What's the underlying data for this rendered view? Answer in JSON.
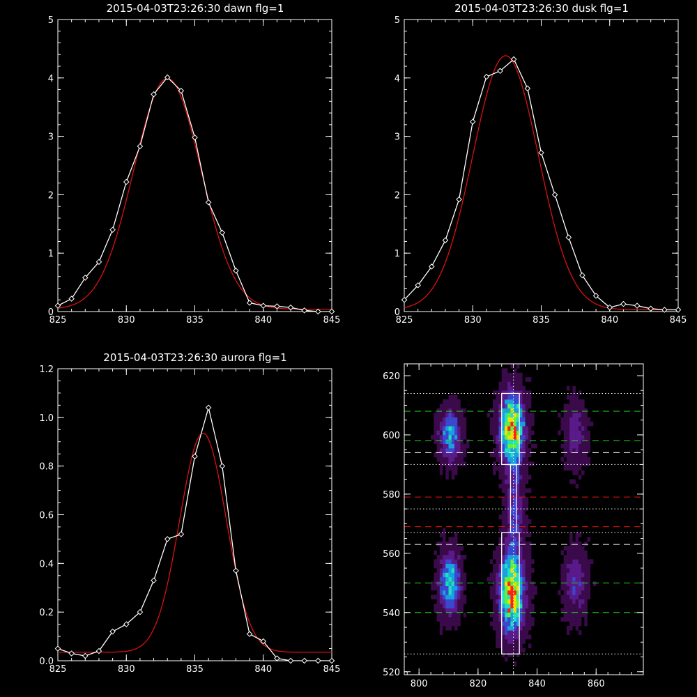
{
  "chart_data": [
    {
      "type": "line",
      "title": "2015-04-03T23:26:30 dawn flg=1",
      "xlim": [
        825,
        845
      ],
      "ylim": [
        0,
        5
      ],
      "xticks": [
        825,
        830,
        835,
        840,
        845
      ],
      "yticks": [
        0,
        1,
        2,
        3,
        4,
        5
      ],
      "series": [
        {
          "role": "measured",
          "color": "#ffffff",
          "marker": "diamond",
          "x": [
            825,
            826,
            827,
            828,
            829,
            830,
            831,
            832,
            833,
            834,
            835,
            836,
            837,
            838,
            839,
            840,
            841,
            842,
            843,
            844,
            845
          ],
          "y": [
            0.1,
            0.22,
            0.58,
            0.85,
            1.4,
            2.22,
            2.83,
            3.72,
            4.01,
            3.78,
            2.98,
            1.87,
            1.35,
            0.7,
            0.15,
            0.1,
            0.09,
            0.07,
            0.02,
            0.0,
            0.0
          ]
        },
        {
          "role": "fit",
          "color": "#dd1111",
          "gaussian": {
            "amp": 3.95,
            "center": 833.0,
            "sigma": 2.45,
            "base": 0.04
          }
        }
      ]
    },
    {
      "type": "line",
      "title": "2015-04-03T23:26:30 dusk flg=1",
      "xlim": [
        825,
        845
      ],
      "ylim": [
        0,
        5
      ],
      "xticks": [
        825,
        830,
        835,
        840,
        845
      ],
      "yticks": [
        0,
        1,
        2,
        3,
        4,
        5
      ],
      "series": [
        {
          "role": "measured",
          "color": "#ffffff",
          "marker": "diamond",
          "x": [
            825,
            826,
            827,
            828,
            829,
            830,
            831,
            832,
            833,
            834,
            835,
            836,
            837,
            838,
            839,
            840,
            841,
            842,
            843,
            844,
            845
          ],
          "y": [
            0.2,
            0.45,
            0.77,
            1.22,
            1.92,
            3.25,
            4.02,
            4.12,
            4.32,
            3.82,
            2.72,
            2.0,
            1.27,
            0.62,
            0.27,
            0.07,
            0.13,
            0.1,
            0.05,
            0.03,
            0.03
          ]
        },
        {
          "role": "fit",
          "color": "#dd1111",
          "gaussian": {
            "amp": 4.35,
            "center": 832.4,
            "sigma": 2.4,
            "base": 0.03
          }
        }
      ]
    },
    {
      "type": "line",
      "title": "2015-04-03T23:26:30 aurora flg=1",
      "xlim": [
        825,
        845
      ],
      "ylim": [
        0,
        1.2
      ],
      "xticks": [
        825,
        830,
        835,
        840,
        845
      ],
      "yticks": [
        0.0,
        0.2,
        0.4,
        0.6,
        0.8,
        1.0,
        1.2
      ],
      "ytick_labels": [
        "0.0",
        "0.2",
        "0.4",
        "0.6",
        "0.8",
        "1.0",
        "1.2"
      ],
      "series": [
        {
          "role": "measured",
          "color": "#ffffff",
          "marker": "diamond",
          "x": [
            825,
            826,
            827,
            828,
            829,
            830,
            831,
            832,
            833,
            834,
            835,
            836,
            837,
            838,
            839,
            840,
            841,
            842,
            843,
            844,
            845
          ],
          "y": [
            0.05,
            0.03,
            0.02,
            0.04,
            0.12,
            0.15,
            0.2,
            0.33,
            0.5,
            0.52,
            0.84,
            1.04,
            0.8,
            0.37,
            0.11,
            0.08,
            0.01,
            0.0,
            0.0,
            0.0,
            0.0
          ]
        },
        {
          "role": "fit",
          "color": "#dd1111",
          "gaussian": {
            "amp": 0.9,
            "center": 835.6,
            "sigma": 1.7,
            "base": 0.035
          }
        }
      ]
    },
    {
      "type": "heatmap",
      "xlim": [
        795,
        876
      ],
      "ylim": [
        519,
        624
      ],
      "xticks": [
        800,
        820,
        840,
        860
      ],
      "yticks": [
        520,
        540,
        560,
        580,
        600,
        620
      ],
      "colormap": [
        "#000000",
        "#3a0a4a",
        "#5a1a8a",
        "#3a48d0",
        "#1aa0e0",
        "#20e0c0",
        "#60f040",
        "#f0e000",
        "#ff2010"
      ],
      "blobs": [
        {
          "x": 810.5,
          "y": 600,
          "sx": 2.4,
          "sy": 6,
          "amp": 0.55
        },
        {
          "x": 810.5,
          "y": 550,
          "sx": 2.4,
          "sy": 7,
          "amp": 0.62
        },
        {
          "x": 831.5,
          "y": 602,
          "sx": 2.8,
          "sy": 8,
          "amp": 0.95
        },
        {
          "x": 831.5,
          "y": 547,
          "sx": 2.8,
          "sy": 9,
          "amp": 1.0
        },
        {
          "x": 832.5,
          "y": 575,
          "sx": 2.0,
          "sy": 10,
          "amp": 0.35
        },
        {
          "x": 853,
          "y": 600,
          "sx": 2.6,
          "sy": 7,
          "amp": 0.28
        },
        {
          "x": 853,
          "y": 550,
          "sx": 2.6,
          "sy": 8,
          "amp": 0.3
        }
      ],
      "boxes": [
        {
          "x0": 828,
          "x1": 834,
          "y0": 590,
          "y1": 614
        },
        {
          "x0": 828,
          "x1": 834,
          "y0": 526,
          "y1": 567
        },
        {
          "x0": 831,
          "x1": 833,
          "y0": 567,
          "y1": 590
        }
      ],
      "hlines": [
        {
          "y": 614,
          "color": "#ffffff",
          "style": "dotted"
        },
        {
          "y": 608,
          "color": "#22dd22",
          "style": "dashed"
        },
        {
          "y": 598,
          "color": "#22dd22",
          "style": "dashed"
        },
        {
          "y": 594,
          "color": "#ffffff",
          "style": "dashed"
        },
        {
          "y": 590,
          "color": "#ffffff",
          "style": "dotted"
        },
        {
          "y": 579,
          "color": "#ee1111",
          "style": "dashed"
        },
        {
          "y": 575,
          "color": "#ffffff",
          "style": "dotted"
        },
        {
          "y": 569,
          "color": "#ee1111",
          "style": "dashed"
        },
        {
          "y": 567,
          "color": "#ffffff",
          "style": "dotted"
        },
        {
          "y": 563,
          "color": "#ffffff",
          "style": "dashed"
        },
        {
          "y": 550,
          "color": "#22dd22",
          "style": "dashed"
        },
        {
          "y": 540,
          "color": "#22dd22",
          "style": "dashed"
        },
        {
          "y": 526,
          "color": "#ffffff",
          "style": "dotted"
        }
      ],
      "vlines": [
        {
          "x": 832,
          "color": "#ffffff",
          "style": "dotted"
        }
      ]
    }
  ]
}
